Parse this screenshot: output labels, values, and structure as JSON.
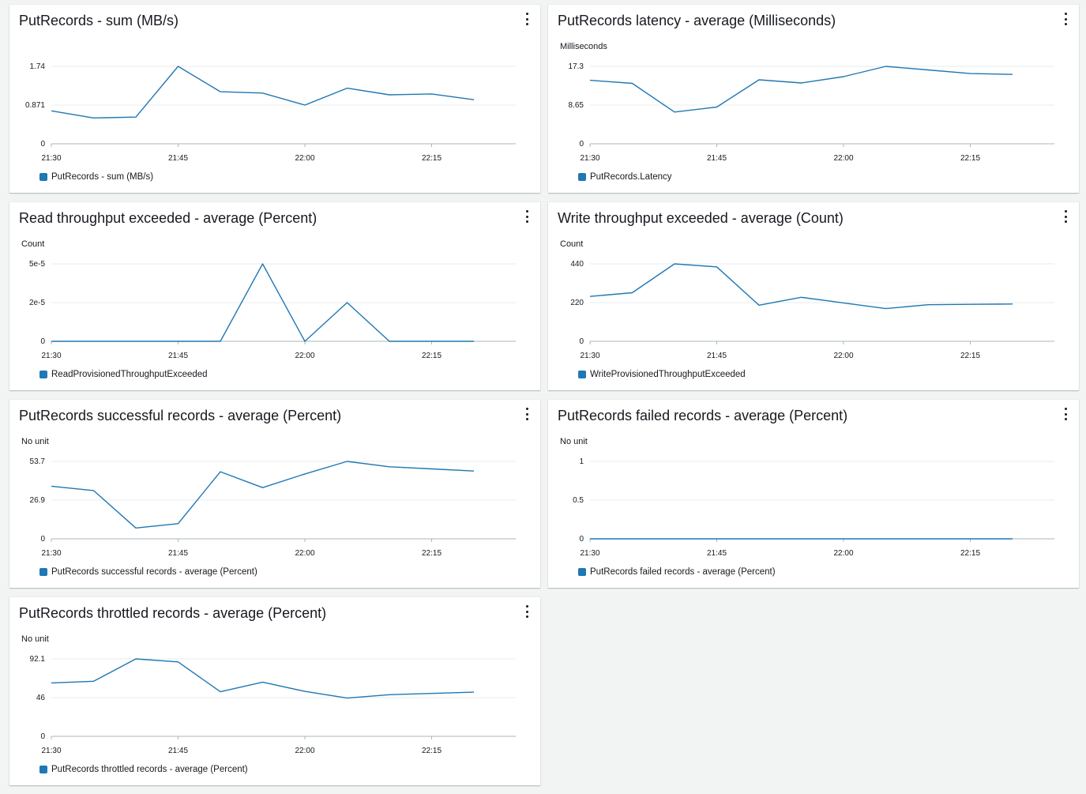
{
  "theme": {
    "series_color": "#1f77b4",
    "grid_color": "#e9ebed",
    "axis_color": "#aab7b8"
  },
  "x_axis": {
    "ticks": [
      "21:30",
      "21:45",
      "22:00",
      "22:15"
    ]
  },
  "widgets": [
    {
      "title": "PutRecords - sum (MB/s)",
      "unit_label": "",
      "y_ticks": [
        "0",
        "0.871",
        "1.74"
      ],
      "legend": "PutRecords - sum (MB/s)"
    },
    {
      "title": "PutRecords latency - average (Milliseconds)",
      "unit_label": "Milliseconds",
      "y_ticks": [
        "0",
        "8.65",
        "17.3"
      ],
      "legend": "PutRecords.Latency"
    },
    {
      "title": "Read throughput exceeded - average (Percent)",
      "unit_label": "Count",
      "y_ticks": [
        "0",
        "2e-5",
        "5e-5"
      ],
      "legend": "ReadProvisionedThroughputExceeded"
    },
    {
      "title": "Write throughput exceeded - average (Count)",
      "unit_label": "Count",
      "y_ticks": [
        "0",
        "220",
        "440"
      ],
      "legend": "WriteProvisionedThroughputExceeded"
    },
    {
      "title": "PutRecords successful records - average (Percent)",
      "unit_label": "No unit",
      "y_ticks": [
        "0",
        "26.9",
        "53.7"
      ],
      "legend": "PutRecords successful records - average (Percent)"
    },
    {
      "title": "PutRecords failed records - average (Percent)",
      "unit_label": "No unit",
      "y_ticks": [
        "0",
        "0.5",
        "1"
      ],
      "legend": "PutRecords failed records - average (Percent)"
    },
    {
      "title": "PutRecords throttled records - average (Percent)",
      "unit_label": "No unit",
      "y_ticks": [
        "0",
        "46",
        "92.1"
      ],
      "legend": "PutRecords throttled records - average (Percent)"
    }
  ],
  "chart_data": [
    {
      "type": "line",
      "title": "PutRecords - sum (MB/s)",
      "ylabel": "",
      "ylim": [
        0,
        1.74
      ],
      "x": [
        "21:30",
        "21:35",
        "21:40",
        "21:45",
        "21:50",
        "21:55",
        "22:00",
        "22:05",
        "22:10",
        "22:15",
        "22:20"
      ],
      "series": [
        {
          "name": "PutRecords - sum (MB/s)",
          "values": [
            0.74,
            0.58,
            0.6,
            1.74,
            1.17,
            1.14,
            0.87,
            1.25,
            1.1,
            1.12,
            0.99
          ]
        }
      ]
    },
    {
      "type": "line",
      "title": "PutRecords latency - average (Milliseconds)",
      "ylabel": "Milliseconds",
      "ylim": [
        0,
        17.3
      ],
      "x": [
        "21:30",
        "21:35",
        "21:40",
        "21:45",
        "21:50",
        "21:55",
        "22:00",
        "22:05",
        "22:10",
        "22:15",
        "22:20"
      ],
      "series": [
        {
          "name": "PutRecords.Latency",
          "values": [
            14.2,
            13.5,
            7.1,
            8.2,
            14.3,
            13.6,
            15.0,
            17.3,
            16.5,
            15.7,
            15.5
          ]
        }
      ]
    },
    {
      "type": "line",
      "title": "Read throughput exceeded - average (Percent)",
      "ylabel": "Count",
      "ylim": [
        0,
        5e-05
      ],
      "x": [
        "21:30",
        "21:35",
        "21:40",
        "21:45",
        "21:50",
        "21:55",
        "22:00",
        "22:05",
        "22:10",
        "22:15",
        "22:20"
      ],
      "series": [
        {
          "name": "ReadProvisionedThroughputExceeded",
          "values": [
            0,
            0,
            0,
            0,
            0,
            5e-05,
            0,
            2.5e-05,
            0,
            0,
            0
          ]
        }
      ]
    },
    {
      "type": "line",
      "title": "Write throughput exceeded - average (Count)",
      "ylabel": "Count",
      "ylim": [
        0,
        440
      ],
      "x": [
        "21:30",
        "21:35",
        "21:40",
        "21:45",
        "21:50",
        "21:55",
        "22:00",
        "22:05",
        "22:10",
        "22:15",
        "22:20"
      ],
      "series": [
        {
          "name": "WriteProvisionedThroughputExceeded",
          "values": [
            255,
            276,
            440,
            423,
            205,
            250,
            218,
            186,
            208,
            210,
            212
          ]
        }
      ]
    },
    {
      "type": "line",
      "title": "PutRecords successful records - average (Percent)",
      "ylabel": "No unit",
      "ylim": [
        0,
        53.7
      ],
      "x": [
        "21:30",
        "21:35",
        "21:40",
        "21:45",
        "21:50",
        "21:55",
        "22:00",
        "22:05",
        "22:10",
        "22:15",
        "22:20"
      ],
      "series": [
        {
          "name": "PutRecords successful records - average (Percent)",
          "values": [
            36.5,
            33.5,
            7.5,
            10.5,
            46.5,
            35.5,
            45.0,
            53.7,
            50.0,
            48.5,
            47.0
          ]
        }
      ]
    },
    {
      "type": "line",
      "title": "PutRecords failed records - average (Percent)",
      "ylabel": "No unit",
      "ylim": [
        0,
        1
      ],
      "x": [
        "21:30",
        "21:35",
        "21:40",
        "21:45",
        "21:50",
        "21:55",
        "22:00",
        "22:05",
        "22:10",
        "22:15",
        "22:20"
      ],
      "series": [
        {
          "name": "PutRecords failed records - average (Percent)",
          "values": [
            0,
            0,
            0,
            0,
            0,
            0,
            0,
            0,
            0,
            0,
            0
          ]
        }
      ]
    },
    {
      "type": "line",
      "title": "PutRecords throttled records - average (Percent)",
      "ylabel": "No unit",
      "ylim": [
        0,
        92.1
      ],
      "x": [
        "21:30",
        "21:35",
        "21:40",
        "21:45",
        "21:50",
        "21:55",
        "22:00",
        "22:05",
        "22:10",
        "22:15",
        "22:20"
      ],
      "series": [
        {
          "name": "PutRecords throttled records - average (Percent)",
          "values": [
            63.5,
            65.5,
            92.1,
            88.5,
            53.0,
            64.5,
            53.5,
            45.5,
            49.5,
            51.0,
            52.5
          ]
        }
      ]
    }
  ]
}
